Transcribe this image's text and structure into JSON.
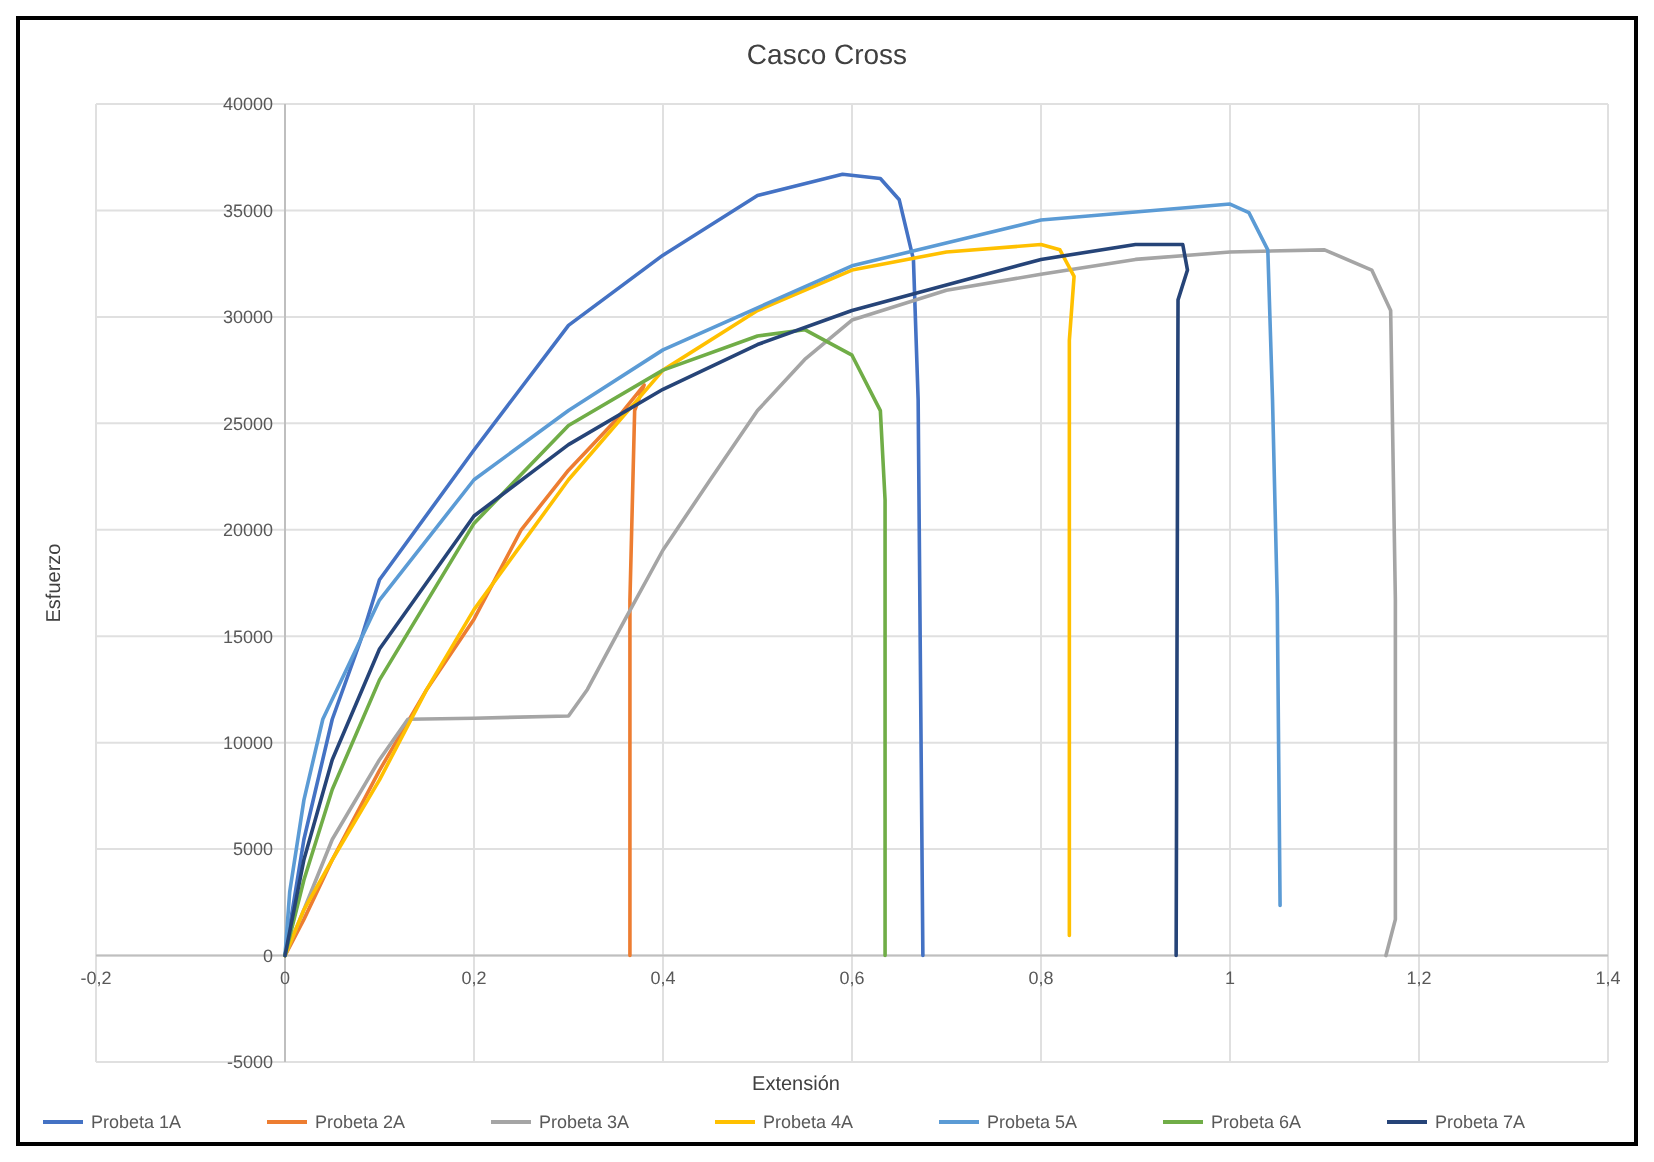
{
  "chart_data": {
    "type": "line",
    "title": "Casco Cross",
    "xlabel": "Extensión",
    "ylabel": "Esfuerzo",
    "xlim": [
      -0.2,
      1.4
    ],
    "xticks": [
      {
        "value": -0.2,
        "label": "-0,2"
      },
      0,
      {
        "value": 0.2,
        "label": "0,2"
      },
      {
        "value": 0.4,
        "label": "0,4"
      },
      {
        "value": 0.6,
        "label": "0,6"
      },
      {
        "value": 0.8,
        "label": "0,8"
      },
      1,
      {
        "value": 1.2,
        "label": "1,2"
      },
      {
        "value": 1.4,
        "label": "1,4"
      }
    ],
    "ylim": [
      -5000,
      40000
    ],
    "yticks": [
      -5000,
      0,
      5000,
      10000,
      15000,
      20000,
      25000,
      30000,
      35000,
      40000
    ],
    "grid": true,
    "legend": "bottom",
    "marker": "none",
    "line_style": "solid",
    "series": [
      {
        "name": "Probeta 1A",
        "color": "#4472c4",
        "x": [
          0,
          0.02,
          0.05,
          0.08,
          0.1,
          0.2,
          0.3,
          0.4,
          0.5,
          0.59,
          0.63,
          0.65,
          0.665,
          0.67,
          0.675
        ],
        "values": [
          0,
          5450,
          11100,
          14800,
          17650,
          23750,
          29600,
          32900,
          35700,
          36700,
          36500,
          35500,
          32700,
          26100,
          0
        ]
      },
      {
        "name": "Probeta 2A",
        "color": "#ed7d31",
        "x": [
          0,
          0.02,
          0.05,
          0.1,
          0.15,
          0.2,
          0.25,
          0.3,
          0.35,
          0.38,
          0.37,
          0.365,
          0.365
        ],
        "values": [
          0,
          1700,
          4500,
          8700,
          12500,
          15800,
          20000,
          22800,
          25150,
          26800,
          25600,
          16700,
          0
        ]
      },
      {
        "name": "Probeta 3A",
        "color": "#a5a5a5",
        "x": [
          0,
          0.02,
          0.05,
          0.1,
          0.13,
          0.2,
          0.3,
          0.32,
          0.36,
          0.4,
          0.45,
          0.5,
          0.55,
          0.6,
          0.7,
          0.8,
          0.9,
          1.0,
          1.1,
          1.15,
          1.17,
          1.175,
          1.175,
          1.165
        ],
        "values": [
          0,
          2150,
          5450,
          9200,
          11100,
          11150,
          11250,
          12500,
          15800,
          19050,
          22350,
          25600,
          28000,
          29850,
          31250,
          32000,
          32700,
          33050,
          33150,
          32200,
          30300,
          16700,
          1700,
          0
        ]
      },
      {
        "name": "Probeta 4A",
        "color": "#ffc000",
        "x": [
          0,
          0.02,
          0.05,
          0.1,
          0.15,
          0.2,
          0.3,
          0.4,
          0.5,
          0.6,
          0.7,
          0.8,
          0.82,
          0.835,
          0.83,
          0.83
        ],
        "values": [
          0,
          2150,
          4500,
          8250,
          12500,
          16250,
          22350,
          27500,
          30300,
          32200,
          33050,
          33400,
          33150,
          31900,
          28900,
          940
        ]
      },
      {
        "name": "Probeta 5A",
        "color": "#5b9bd5",
        "x": [
          0,
          0.005,
          0.02,
          0.04,
          0.1,
          0.2,
          0.3,
          0.4,
          0.6,
          0.8,
          1.0,
          1.02,
          1.04,
          1.045,
          1.05,
          1.053
        ],
        "values": [
          0,
          3000,
          7300,
          11100,
          16700,
          22350,
          25600,
          28450,
          32400,
          34550,
          35300,
          34900,
          33150,
          26100,
          16700,
          2350
        ]
      },
      {
        "name": "Probeta 6A",
        "color": "#70ad47",
        "x": [
          0,
          0.02,
          0.05,
          0.1,
          0.2,
          0.3,
          0.4,
          0.5,
          0.55,
          0.6,
          0.63,
          0.635,
          0.635
        ],
        "values": [
          0,
          3550,
          7800,
          12950,
          20300,
          24900,
          27500,
          29100,
          29400,
          28200,
          25600,
          21400,
          0
        ]
      },
      {
        "name": "Probeta 7A",
        "color": "#264478",
        "x": [
          0,
          0.02,
          0.05,
          0.1,
          0.2,
          0.3,
          0.4,
          0.5,
          0.6,
          0.8,
          0.9,
          0.95,
          0.955,
          0.945,
          0.943
        ],
        "values": [
          0,
          4500,
          9200,
          14400,
          20650,
          24000,
          26600,
          28700,
          30300,
          32700,
          33400,
          33400,
          32200,
          30800,
          0
        ]
      }
    ]
  }
}
